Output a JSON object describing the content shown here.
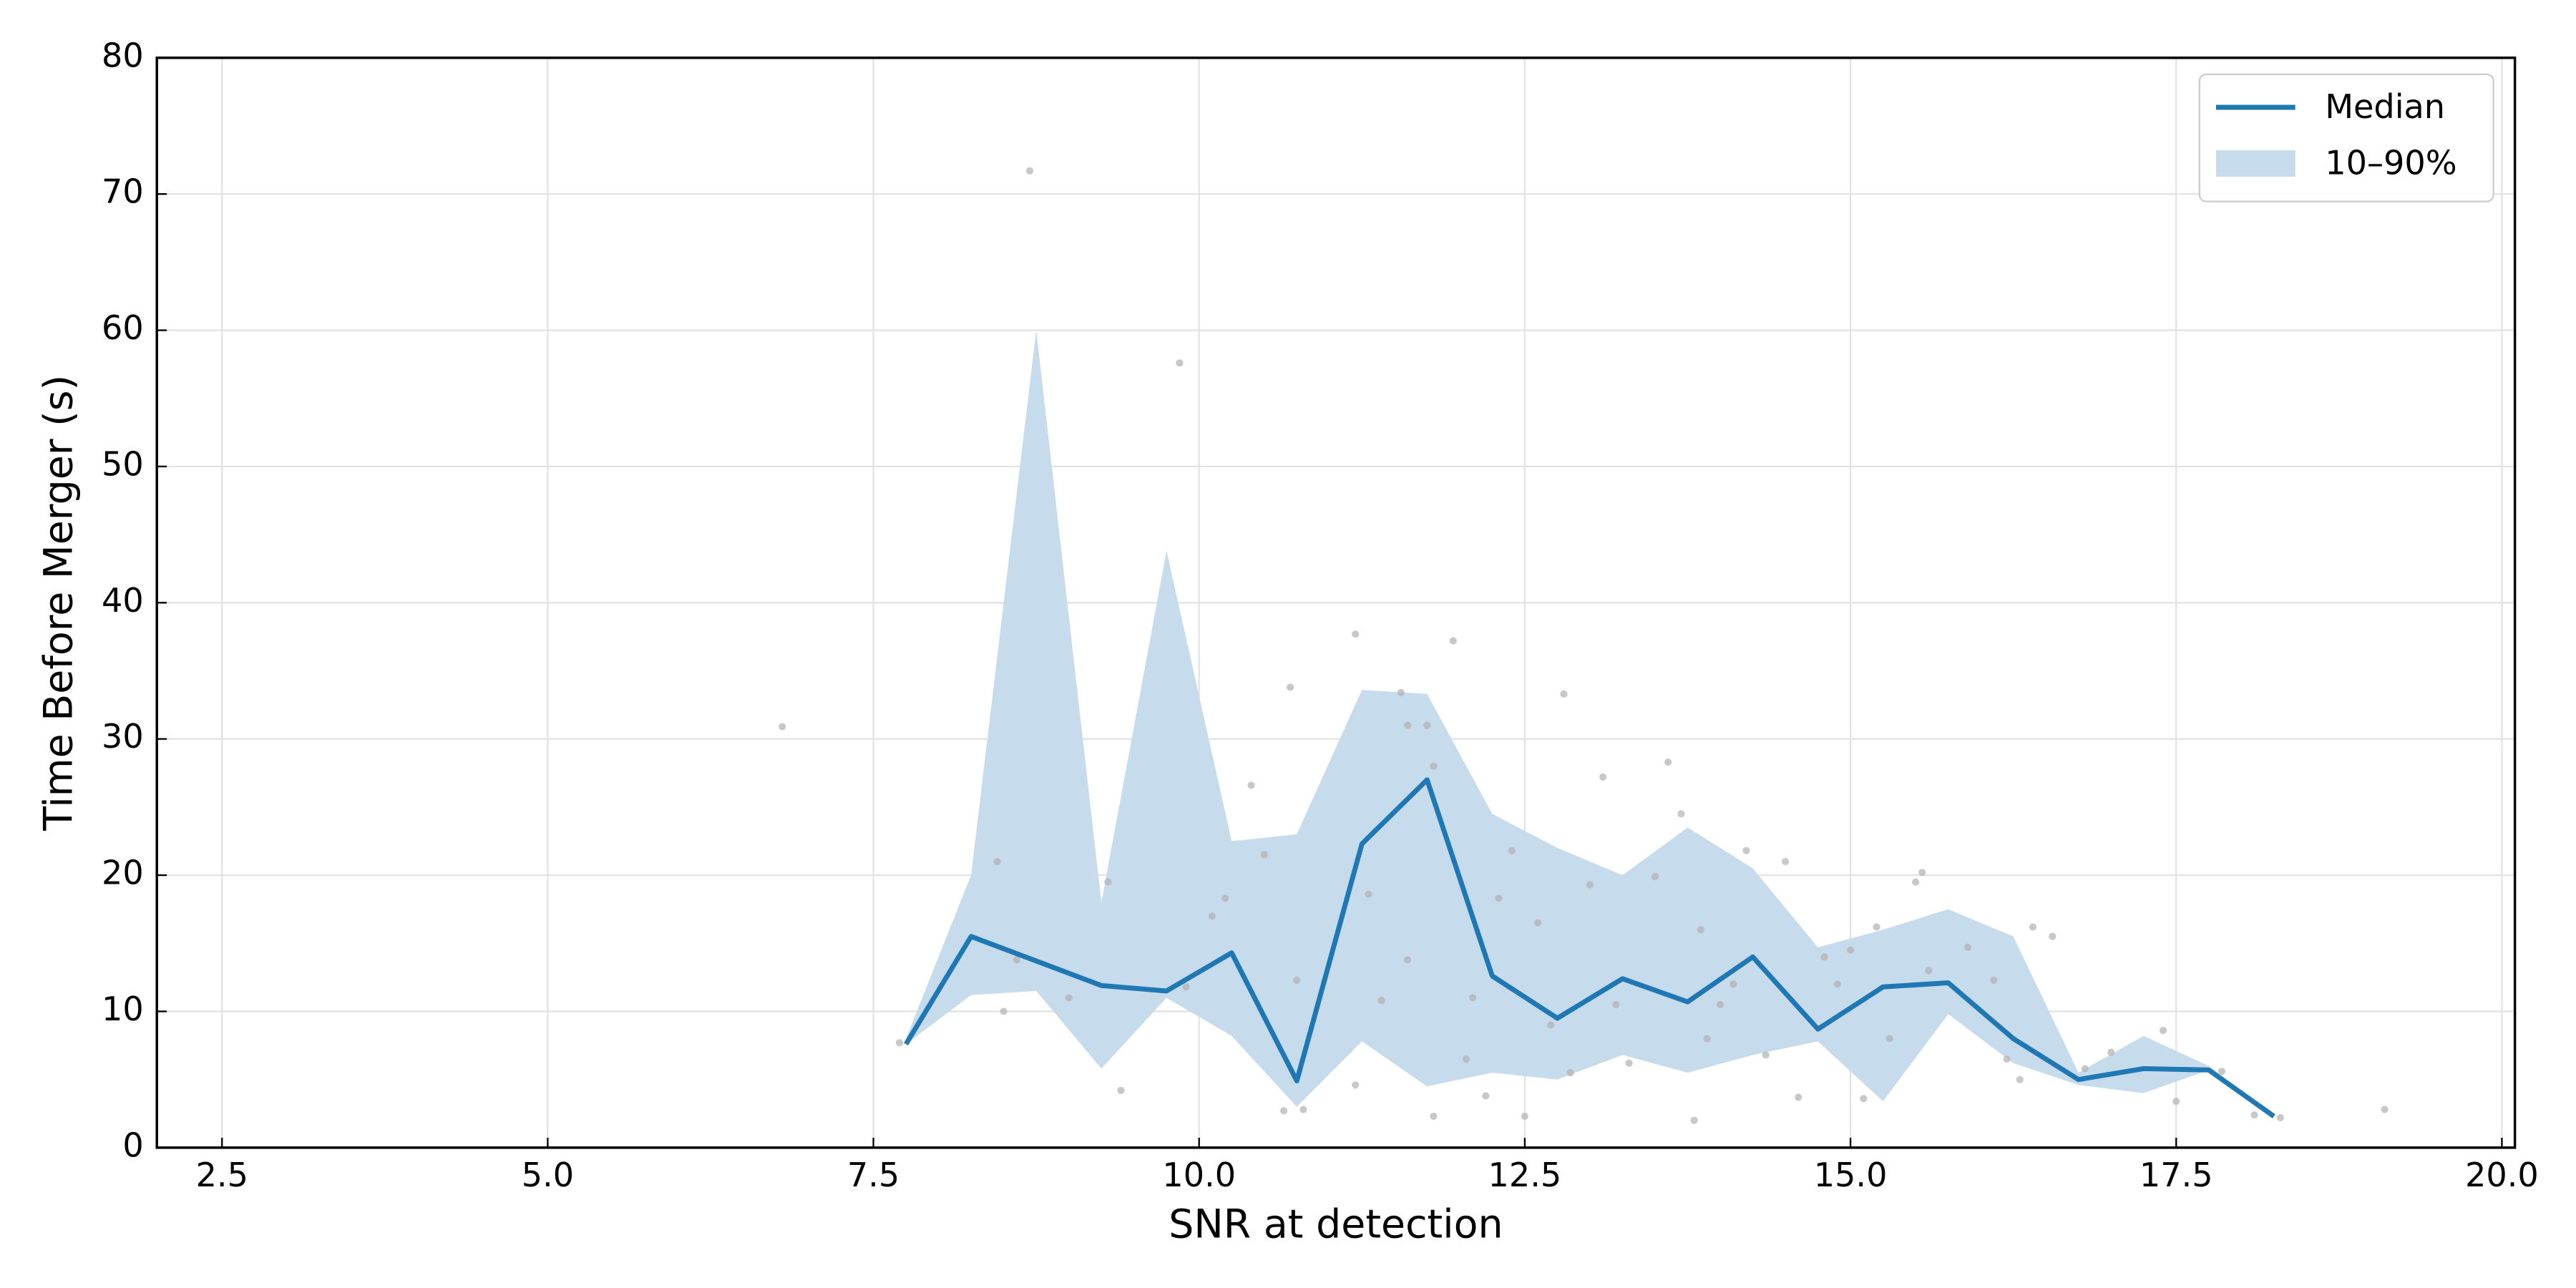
{
  "chart_data": {
    "type": "line",
    "xlabel": "SNR at detection",
    "ylabel": "Time Before Merger (s)",
    "xlim": [
      2.0,
      20.1
    ],
    "ylim": [
      0,
      80
    ],
    "xticks": [
      2.5,
      {
        "value": 5,
        "label": "5.0"
      },
      7.5,
      {
        "value": 10,
        "label": "10.0"
      },
      12.5,
      {
        "value": 15,
        "label": "15.0"
      },
      17.5,
      {
        "value": 20,
        "label": "20.0"
      }
    ],
    "yticks": [
      0,
      10,
      20,
      30,
      40,
      50,
      60,
      70,
      80
    ],
    "grid": true,
    "legend": "upper right",
    "x": [
      7.75,
      8.25,
      8.75,
      9.25,
      9.75,
      10.25,
      10.75,
      11.25,
      11.75,
      12.25,
      12.75,
      13.25,
      13.75,
      14.25,
      14.75,
      15.25,
      15.75,
      16.25,
      16.75,
      17.25,
      17.75,
      18.25
    ],
    "series": [
      {
        "name": "Median",
        "color": "#1f77b4",
        "values": [
          7.6,
          15.5,
          13.7,
          11.9,
          11.5,
          14.3,
          4.9,
          22.3,
          27.0,
          12.6,
          9.5,
          12.4,
          10.7,
          14.0,
          8.7,
          11.8,
          12.1,
          8.0,
          5.0,
          5.8,
          5.7,
          2.3
        ]
      }
    ],
    "band": {
      "name": "10–90%",
      "color": "#c6dbec",
      "upper": [
        8.0,
        20.0,
        60.0,
        18.0,
        43.8,
        22.5,
        23.0,
        33.6,
        33.3,
        24.5,
        22.0,
        20.0,
        23.5,
        20.5,
        14.7,
        16.0,
        17.5,
        15.5,
        5.5,
        8.2,
        6.0,
        2.3
      ],
      "lower": [
        7.6,
        11.2,
        11.5,
        5.8,
        11.0,
        8.2,
        3.0,
        7.8,
        4.5,
        5.5,
        5.0,
        6.8,
        5.5,
        6.8,
        7.8,
        3.4,
        9.8,
        6.2,
        4.6,
        4.0,
        5.7,
        2.3
      ]
    },
    "scatter": {
      "color": "#b0b0b0",
      "x": [
        6.8,
        7.7,
        8.7,
        9.85,
        8.45,
        8.5,
        8.6,
        9.0,
        9.3,
        9.4,
        9.9,
        10.1,
        10.2,
        10.4,
        10.5,
        10.65,
        10.7,
        10.75,
        10.8,
        11.2,
        11.2,
        11.3,
        11.4,
        11.55,
        11.6,
        11.6,
        11.75,
        11.8,
        11.95,
        11.8,
        12.05,
        12.1,
        12.2,
        12.3,
        12.4,
        12.5,
        12.6,
        12.7,
        12.8,
        12.85,
        13.0,
        13.1,
        13.2,
        13.3,
        13.5,
        13.6,
        13.7,
        13.8,
        13.85,
        13.9,
        14.0,
        14.1,
        14.2,
        14.35,
        14.5,
        14.6,
        14.8,
        14.9,
        15.0,
        15.1,
        15.2,
        15.3,
        15.5,
        15.55,
        15.6,
        15.9,
        16.1,
        16.2,
        16.3,
        16.4,
        16.55,
        16.8,
        17.0,
        17.4,
        17.5,
        17.85,
        18.1,
        18.3,
        19.1
      ],
      "y": [
        30.9,
        7.7,
        71.7,
        57.6,
        21.0,
        10.0,
        13.8,
        11.0,
        19.5,
        4.2,
        11.8,
        17.0,
        18.3,
        26.6,
        21.5,
        2.7,
        33.8,
        12.3,
        2.8,
        37.7,
        4.6,
        18.6,
        10.8,
        33.4,
        13.8,
        31.0,
        31.0,
        28.0,
        37.2,
        2.3,
        6.5,
        11.0,
        3.8,
        18.3,
        21.8,
        2.3,
        16.5,
        9.0,
        33.3,
        5.5,
        19.3,
        27.2,
        10.5,
        6.2,
        19.9,
        28.3,
        24.5,
        2.0,
        16.0,
        8.0,
        10.5,
        12.0,
        21.8,
        6.8,
        21.0,
        3.7,
        14.0,
        12.0,
        14.5,
        3.6,
        16.2,
        8.0,
        19.5,
        20.2,
        13.0,
        14.7,
        12.3,
        6.5,
        5.0,
        16.2,
        15.5,
        5.8,
        7.0,
        8.6,
        3.4,
        5.6,
        2.4,
        2.2,
        2.8
      ]
    }
  }
}
